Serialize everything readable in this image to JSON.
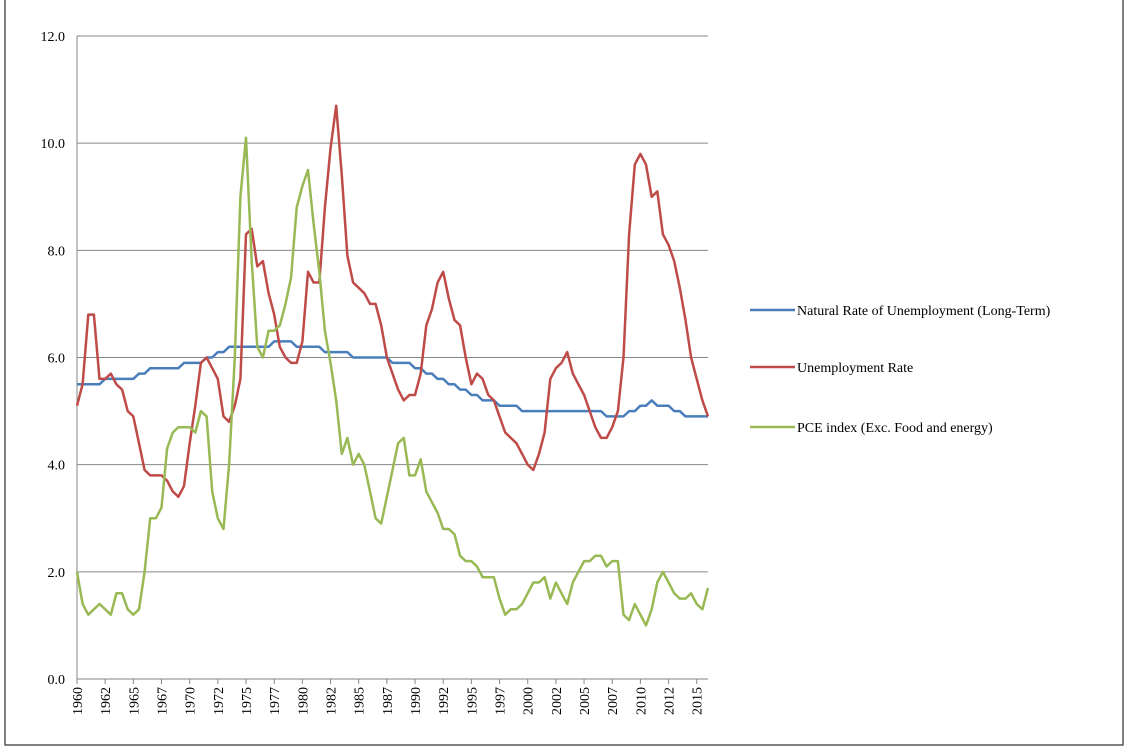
{
  "chart_data": {
    "type": "line",
    "legend": "right",
    "grid": true,
    "xlim": [
      1960,
      2016
    ],
    "ylim": [
      0,
      12
    ],
    "yticks": [
      {
        "value": 0,
        "label": "0.0"
      },
      {
        "value": 2,
        "label": "2.0"
      },
      {
        "value": 4,
        "label": "4.0"
      },
      {
        "value": 6,
        "label": "6.0"
      },
      {
        "value": 8,
        "label": "8.0"
      },
      {
        "value": 10,
        "label": "10.0"
      },
      {
        "value": 12,
        "label": "12.0"
      }
    ],
    "xticks": [
      1960,
      {
        "value": 1962.5,
        "label": "1962"
      },
      1965,
      {
        "value": 1967.5,
        "label": "1967"
      },
      1970,
      {
        "value": 1972.5,
        "label": "1972"
      },
      1975,
      {
        "value": 1977.5,
        "label": "1977"
      },
      1980,
      {
        "value": 1982.5,
        "label": "1982"
      },
      1985,
      {
        "value": 1987.5,
        "label": "1987"
      },
      1990,
      {
        "value": 1992.5,
        "label": "1992"
      },
      1995,
      {
        "value": 1997.5,
        "label": "1997"
      },
      2000,
      {
        "value": 2002.5,
        "label": "2002"
      },
      2005,
      {
        "value": 2007.5,
        "label": "2007"
      },
      2010,
      {
        "value": 2012.5,
        "label": "2012"
      },
      2015
    ],
    "x": [
      1960,
      1960.5,
      1961,
      1961.5,
      1962,
      1962.5,
      1963,
      1963.5,
      1964,
      1964.5,
      1965,
      1965.5,
      1966,
      1966.5,
      1967,
      1967.5,
      1968,
      1968.5,
      1969,
      1969.5,
      1970,
      1970.5,
      1971,
      1971.5,
      1972,
      1972.5,
      1973,
      1973.5,
      1974,
      1974.5,
      1975,
      1975.5,
      1976,
      1976.5,
      1977,
      1977.5,
      1978,
      1978.5,
      1979,
      1979.5,
      1980,
      1980.5,
      1981,
      1981.5,
      1982,
      1982.5,
      1983,
      1983.5,
      1984,
      1984.5,
      1985,
      1985.5,
      1986,
      1986.5,
      1987,
      1987.5,
      1988,
      1988.5,
      1989,
      1989.5,
      1990,
      1990.5,
      1991,
      1991.5,
      1992,
      1992.5,
      1993,
      1993.5,
      1994,
      1994.5,
      1995,
      1995.5,
      1996,
      1996.5,
      1997,
      1997.5,
      1998,
      1998.5,
      1999,
      1999.5,
      2000,
      2000.5,
      2001,
      2001.5,
      2002,
      2002.5,
      2003,
      2003.5,
      2004,
      2004.5,
      2005,
      2005.5,
      2006,
      2006.5,
      2007,
      2007.5,
      2008,
      2008.5,
      2009,
      2009.5,
      2010,
      2010.5,
      2011,
      2011.5,
      2012,
      2012.5,
      2013,
      2013.5,
      2014,
      2014.5,
      2015,
      2015.5,
      2016
    ],
    "series": [
      {
        "name": "Natural Rate of Unemployment (Long-Term)",
        "color": "#4a7ebb",
        "values": [
          5.5,
          5.5,
          5.5,
          5.5,
          5.5,
          5.6,
          5.6,
          5.6,
          5.6,
          5.6,
          5.6,
          5.7,
          5.7,
          5.8,
          5.8,
          5.8,
          5.8,
          5.8,
          5.8,
          5.9,
          5.9,
          5.9,
          5.9,
          6.0,
          6.0,
          6.1,
          6.1,
          6.2,
          6.2,
          6.2,
          6.2,
          6.2,
          6.2,
          6.2,
          6.2,
          6.3,
          6.3,
          6.3,
          6.3,
          6.2,
          6.2,
          6.2,
          6.2,
          6.2,
          6.1,
          6.1,
          6.1,
          6.1,
          6.1,
          6.0,
          6.0,
          6.0,
          6.0,
          6.0,
          6.0,
          6.0,
          5.9,
          5.9,
          5.9,
          5.9,
          5.8,
          5.8,
          5.7,
          5.7,
          5.6,
          5.6,
          5.5,
          5.5,
          5.4,
          5.4,
          5.3,
          5.3,
          5.2,
          5.2,
          5.2,
          5.1,
          5.1,
          5.1,
          5.1,
          5.0,
          5.0,
          5.0,
          5.0,
          5.0,
          5.0,
          5.0,
          5.0,
          5.0,
          5.0,
          5.0,
          5.0,
          5.0,
          5.0,
          5.0,
          4.9,
          4.9,
          4.9,
          4.9,
          5.0,
          5.0,
          5.1,
          5.1,
          5.2,
          5.1,
          5.1,
          5.1,
          5.0,
          5.0,
          4.9,
          4.9,
          4.9,
          4.9,
          4.9
        ]
      },
      {
        "name": "Unemployment Rate",
        "color": "#be4b48",
        "values": [
          5.1,
          5.5,
          6.8,
          6.8,
          5.6,
          5.6,
          5.7,
          5.5,
          5.4,
          5.0,
          4.9,
          4.4,
          3.9,
          3.8,
          3.8,
          3.8,
          3.7,
          3.5,
          3.4,
          3.6,
          4.4,
          5.1,
          5.9,
          6.0,
          5.8,
          5.6,
          4.9,
          4.8,
          5.1,
          5.6,
          8.3,
          8.4,
          7.7,
          7.8,
          7.2,
          6.8,
          6.2,
          6.0,
          5.9,
          5.9,
          6.3,
          7.6,
          7.4,
          7.4,
          8.8,
          9.9,
          10.7,
          9.4,
          7.9,
          7.4,
          7.3,
          7.2,
          7.0,
          7.0,
          6.6,
          6.0,
          5.7,
          5.4,
          5.2,
          5.3,
          5.3,
          5.7,
          6.6,
          6.9,
          7.4,
          7.6,
          7.1,
          6.7,
          6.6,
          6.0,
          5.5,
          5.7,
          5.6,
          5.3,
          5.2,
          4.9,
          4.6,
          4.5,
          4.4,
          4.2,
          4.0,
          3.9,
          4.2,
          4.6,
          5.6,
          5.8,
          5.9,
          6.1,
          5.7,
          5.5,
          5.3,
          5.0,
          4.7,
          4.5,
          4.5,
          4.7,
          5.0,
          6.0,
          8.3,
          9.6,
          9.8,
          9.6,
          9.0,
          9.1,
          8.3,
          8.1,
          7.8,
          7.3,
          6.7,
          6.0,
          5.6,
          5.2,
          4.9
        ]
      },
      {
        "name": "PCE index (Exc. Food and energy)",
        "color": "#98b954",
        "values": [
          2.0,
          1.4,
          1.2,
          1.3,
          1.4,
          1.3,
          1.2,
          1.6,
          1.6,
          1.3,
          1.2,
          1.3,
          2.0,
          3.0,
          3.0,
          3.2,
          4.3,
          4.6,
          4.7,
          4.7,
          4.7,
          4.6,
          5.0,
          4.9,
          3.5,
          3.0,
          2.8,
          4.0,
          6.0,
          9.0,
          10.1,
          7.8,
          6.2,
          6.0,
          6.5,
          6.5,
          6.6,
          7.0,
          7.5,
          8.8,
          9.2,
          9.5,
          8.5,
          7.6,
          6.5,
          5.9,
          5.2,
          4.2,
          4.5,
          4.0,
          4.2,
          4.0,
          3.5,
          3.0,
          2.9,
          3.4,
          3.9,
          4.4,
          4.5,
          3.8,
          3.8,
          4.1,
          3.5,
          3.3,
          3.1,
          2.8,
          2.8,
          2.7,
          2.3,
          2.2,
          2.2,
          2.1,
          1.9,
          1.9,
          1.9,
          1.5,
          1.2,
          1.3,
          1.3,
          1.4,
          1.6,
          1.8,
          1.8,
          1.9,
          1.5,
          1.8,
          1.6,
          1.4,
          1.8,
          2.0,
          2.2,
          2.2,
          2.3,
          2.3,
          2.1,
          2.2,
          2.2,
          1.2,
          1.1,
          1.4,
          1.2,
          1.0,
          1.3,
          1.8,
          2.0,
          1.8,
          1.6,
          1.5,
          1.5,
          1.6,
          1.4,
          1.3,
          1.7
        ]
      }
    ]
  }
}
